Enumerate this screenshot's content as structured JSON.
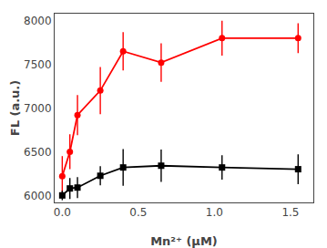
{
  "chart_data": {
    "type": "line",
    "xlabel": "Mn²⁺ (μM)",
    "ylabel": "FL (a.u.)",
    "x": [
      0.0,
      0.05,
      0.1,
      0.25,
      0.4,
      0.65,
      1.05,
      1.55
    ],
    "series": [
      {
        "color": "#FF0000",
        "marker": "circle",
        "line_style": "solid",
        "values": [
          6220,
          6500,
          6920,
          7200,
          7650,
          7520,
          7800,
          7800
        ],
        "errors": [
          230,
          200,
          230,
          270,
          220,
          220,
          200,
          170
        ]
      },
      {
        "color": "#000000",
        "marker": "square",
        "line_style": "solid",
        "values": [
          6000,
          6080,
          6090,
          6225,
          6320,
          6340,
          6320,
          6300
        ],
        "errors": [
          55,
          120,
          120,
          110,
          210,
          185,
          140,
          170
        ]
      }
    ],
    "xlim": [
      -0.05,
      1.65
    ],
    "xticks": [
      {
        "value": 0.0,
        "label": "0.0"
      },
      0.5,
      {
        "value": 1.0,
        "label": "1.0"
      },
      1.5
    ],
    "ylim": [
      5920,
      8080
    ],
    "yticks": [
      6000,
      6500,
      7000,
      7500,
      8000
    ],
    "grid": false
  }
}
